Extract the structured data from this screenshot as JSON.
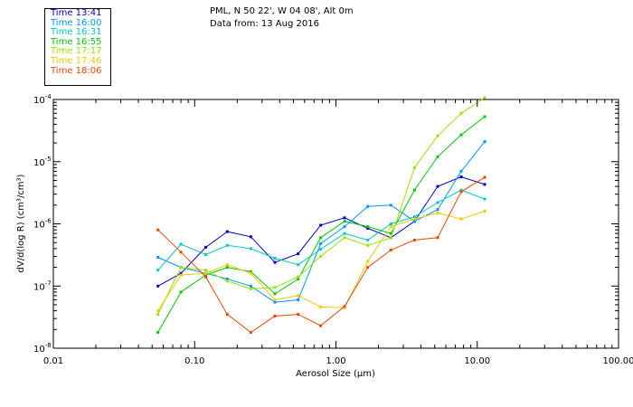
{
  "header": {
    "location": "PML, N 50 22', W 04 08', Alt 0m",
    "date_line": "Data from: 13 Aug 2016"
  },
  "chart_data": {
    "type": "line",
    "xlabel": "Aerosol Size (µm)",
    "ylabel": "dV/d(log R) (cm³/cm³)",
    "x_scale": "log",
    "y_scale": "log",
    "xlim": [
      0.01,
      100
    ],
    "ylim": [
      1e-08,
      0.0001
    ],
    "x_ticks": [
      {
        "value": 0.01,
        "label": "0.01"
      },
      {
        "value": 0.1,
        "label": "0.10"
      },
      {
        "value": 1,
        "label": "1.00"
      },
      {
        "value": 10,
        "label": "10.00"
      },
      {
        "value": 100,
        "label": "100.00"
      }
    ],
    "y_ticks": [
      {
        "value": 1e-08,
        "label": "10",
        "exp": "-8"
      },
      {
        "value": 1e-07,
        "label": "10",
        "exp": "-7"
      },
      {
        "value": 1e-06,
        "label": "10",
        "exp": "-6"
      },
      {
        "value": 1e-05,
        "label": "10",
        "exp": "-5"
      },
      {
        "value": 0.0001,
        "label": "10",
        "exp": "-4"
      }
    ],
    "grid": false,
    "legend_position": "top-left",
    "x": [
      0.055,
      0.08,
      0.12,
      0.17,
      0.25,
      0.37,
      0.54,
      0.78,
      1.15,
      1.68,
      2.45,
      3.6,
      5.25,
      7.7,
      11.3
    ],
    "series": [
      {
        "name": "Time 13:41",
        "color": "#0000c8",
        "values": [
          1e-07,
          1.6e-07,
          4.2e-07,
          7.5e-07,
          6.2e-07,
          2.4e-07,
          3.3e-07,
          9.5e-07,
          1.25e-06,
          8.5e-07,
          6e-07,
          1.1e-06,
          4e-06,
          5.7e-06,
          4.3e-06
        ]
      },
      {
        "name": "Time 16:00",
        "color": "#0096ff",
        "values": [
          2.9e-07,
          2e-07,
          1.6e-07,
          1.3e-07,
          1e-07,
          5.5e-08,
          6e-08,
          4.8e-07,
          9e-07,
          1.9e-06,
          2e-06,
          1.1e-06,
          1.7e-06,
          7e-06,
          2.1e-05
        ]
      },
      {
        "name": "Time 16:31",
        "color": "#00c8c8",
        "values": [
          1.8e-07,
          4.7e-07,
          3.2e-07,
          4.5e-07,
          4e-07,
          2.8e-07,
          2.2e-07,
          3.9e-07,
          7e-07,
          5.5e-07,
          1e-06,
          1.3e-06,
          2.2e-06,
          3.5e-06,
          2.5e-06
        ]
      },
      {
        "name": "Time 16:55",
        "color": "#00c800",
        "values": [
          1.8e-08,
          8e-08,
          1.5e-07,
          2e-07,
          1.7e-07,
          7.5e-08,
          1.3e-07,
          6e-07,
          1.1e-06,
          9e-07,
          7e-07,
          3.5e-06,
          1.2e-05,
          2.7e-05,
          5.3e-05
        ]
      },
      {
        "name": "Time 17:17",
        "color": "#96e600",
        "values": [
          3.5e-08,
          2e-07,
          1.8e-07,
          1.2e-07,
          9e-08,
          9.5e-08,
          1.4e-07,
          3e-07,
          6e-07,
          4.5e-07,
          6e-07,
          8e-06,
          2.6e-05,
          6e-05,
          0.00011
        ]
      },
      {
        "name": "Time 17:46",
        "color": "#f0c800",
        "values": [
          4e-08,
          1.5e-07,
          1.6e-07,
          2.2e-07,
          1.6e-07,
          6e-08,
          7e-08,
          4.6e-08,
          4.5e-08,
          2.5e-07,
          9e-07,
          1.2e-06,
          1.5e-06,
          1.2e-06,
          1.6e-06
        ]
      },
      {
        "name": "Time 18:06",
        "color": "#f04600",
        "values": [
          8e-07,
          3.5e-07,
          1.4e-07,
          3.5e-08,
          1.8e-08,
          3.3e-08,
          3.5e-08,
          2.3e-08,
          4.7e-08,
          2e-07,
          3.8e-07,
          5.5e-07,
          6e-07,
          3.3e-06,
          5.6e-06
        ]
      }
    ]
  }
}
